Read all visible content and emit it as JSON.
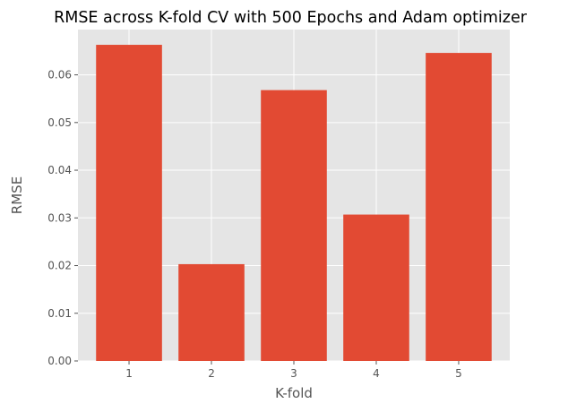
{
  "chart_data": {
    "type": "bar",
    "title": "RMSE across K-fold CV with 500 Epochs and Adam optimizer",
    "xlabel": "K-fold",
    "ylabel": "RMSE",
    "categories": [
      "1",
      "2",
      "3",
      "4",
      "5"
    ],
    "values": [
      0.0663,
      0.0203,
      0.0568,
      0.0307,
      0.0646
    ],
    "ylim": [
      0,
      0.0695
    ],
    "yticks": [
      0.0,
      0.01,
      0.02,
      0.03,
      0.04,
      0.05,
      0.06
    ],
    "ytick_labels": [
      "0.00",
      "0.01",
      "0.02",
      "0.03",
      "0.04",
      "0.05",
      "0.06"
    ],
    "grid": true,
    "style": "ggplot",
    "colors": {
      "bar": "#E24A33",
      "plot_background": "#E5E5E5",
      "grid": "#FFFFFF",
      "tick": "#555555",
      "title": "#000000"
    }
  }
}
